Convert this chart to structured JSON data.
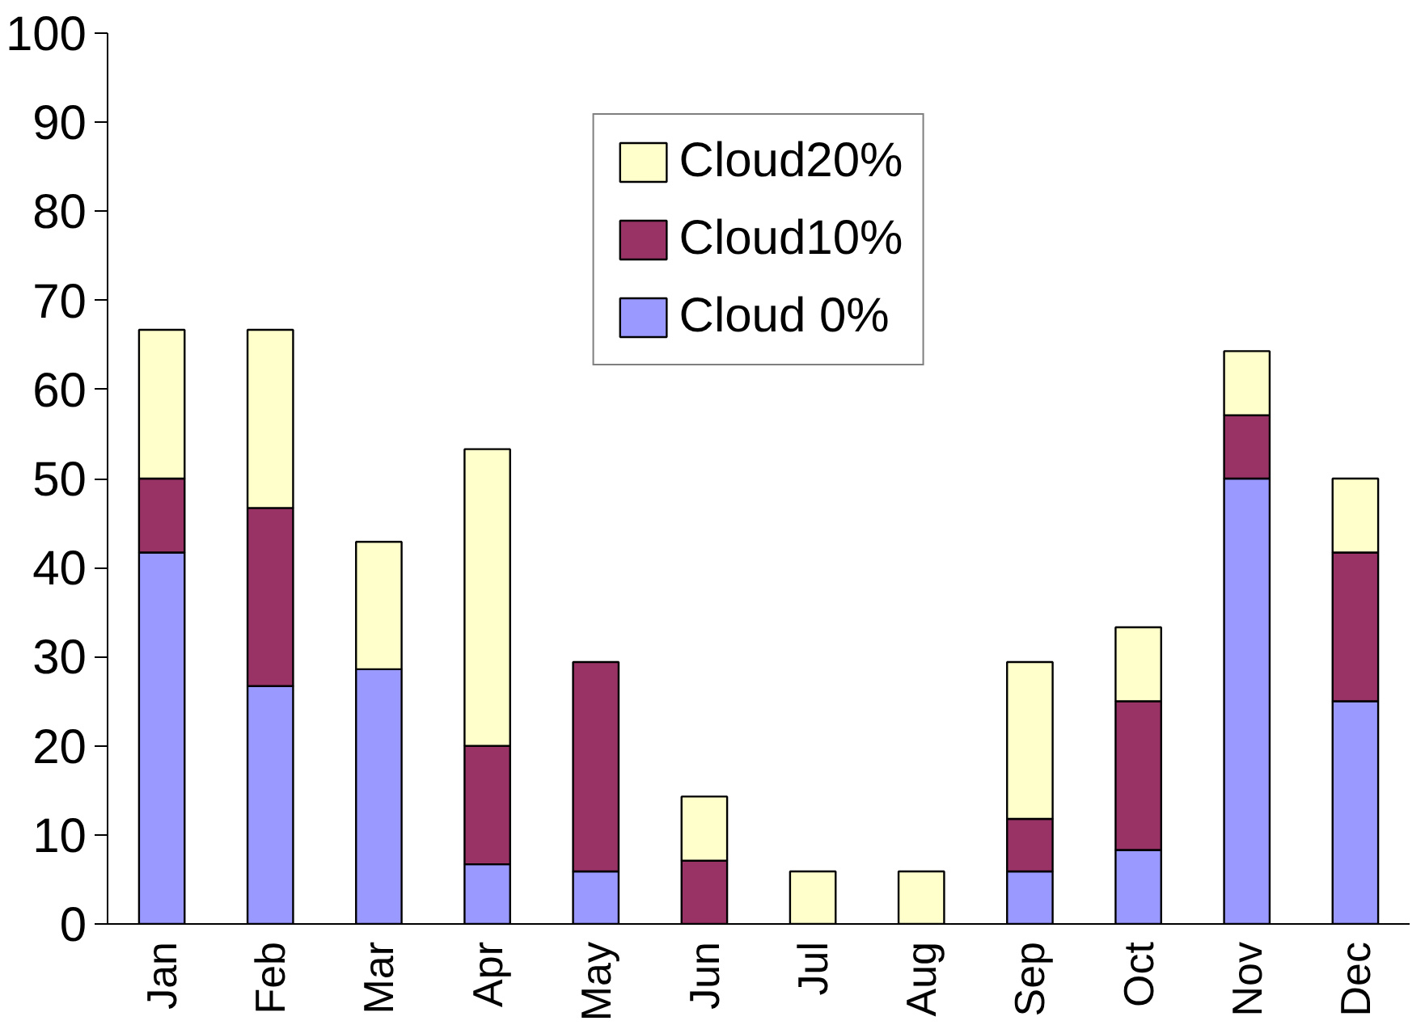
{
  "chart_data": {
    "type": "bar",
    "stacked": true,
    "categories": [
      "Jan",
      "Feb",
      "Mar",
      "Apr",
      "May",
      "Jun",
      "Jul",
      "Aug",
      "Sep",
      "Oct",
      "Nov",
      "Dec"
    ],
    "series": [
      {
        "name": "Cloud 0%",
        "color": "#9999ff",
        "values": [
          41.7,
          26.7,
          28.6,
          6.7,
          5.9,
          0,
          0,
          0,
          5.9,
          8.3,
          50,
          25
        ]
      },
      {
        "name": "Cloud10%",
        "color": "#993366",
        "values": [
          8.3,
          20,
          0,
          13.3,
          23.5,
          7.1,
          0,
          0,
          5.9,
          16.7,
          7.1,
          16.7
        ]
      },
      {
        "name": "Cloud20%",
        "color": "#ffffcc",
        "values": [
          16.7,
          20,
          14.3,
          33.3,
          0,
          7.2,
          5.9,
          5.9,
          17.6,
          8.3,
          7.2,
          8.3
        ]
      }
    ],
    "ylim": [
      0,
      100
    ],
    "yticks": [
      0,
      10,
      20,
      30,
      40,
      50,
      60,
      70,
      80,
      90,
      100
    ],
    "grid": false,
    "legend": "top"
  }
}
